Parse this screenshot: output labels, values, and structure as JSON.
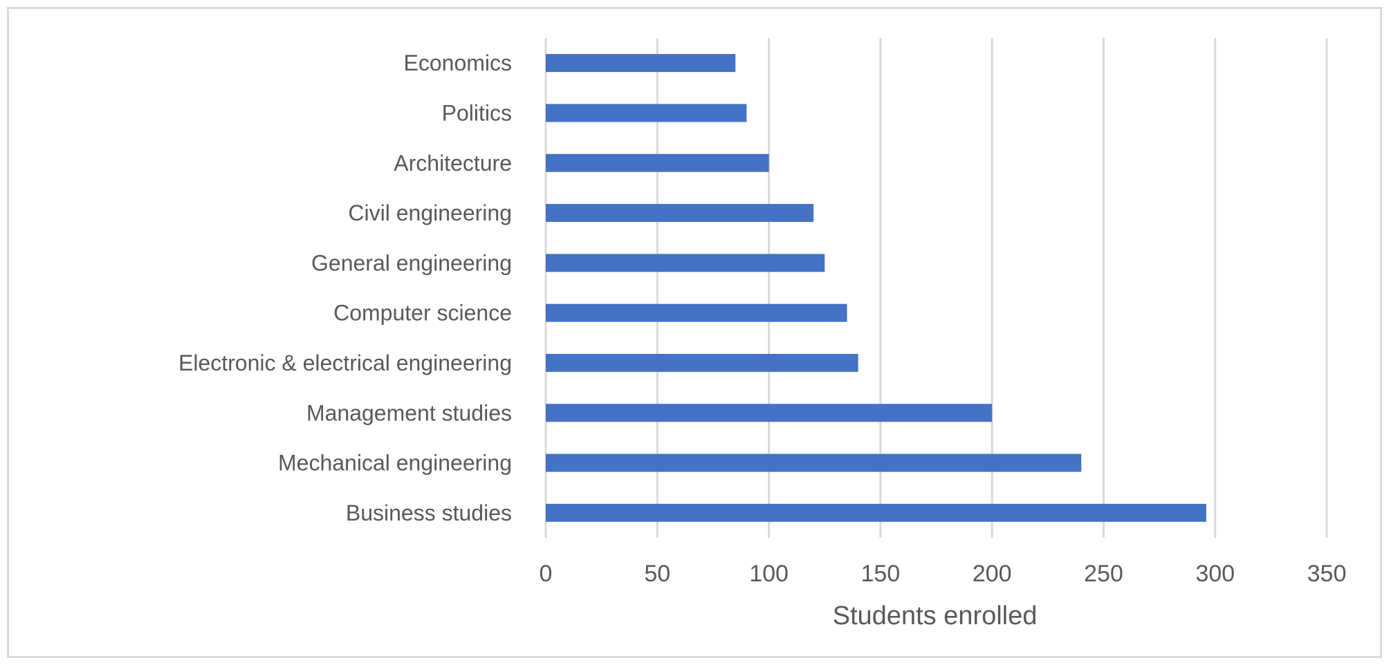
{
  "chart_data": {
    "type": "bar",
    "orientation": "horizontal",
    "title": "",
    "xlabel": "Students enrolled",
    "ylabel": "",
    "categories": [
      "Economics",
      "Politics",
      "Architecture",
      "Civil engineering",
      "General engineering",
      "Computer science",
      "Electronic & electrical engineering",
      "Management studies",
      "Mechanical engineering",
      "Business studies"
    ],
    "values": [
      85,
      90,
      100,
      120,
      125,
      135,
      140,
      200,
      240,
      296
    ],
    "xlim": [
      0,
      350
    ],
    "xticks": [
      "0",
      "50",
      "100",
      "150",
      "200",
      "250",
      "300",
      "350"
    ],
    "grid": true,
    "legend": "none",
    "colors": {
      "bar": "#4472c4",
      "grid": "#d9d9d9",
      "text": "#595959",
      "border": "#d9d9d9"
    }
  }
}
